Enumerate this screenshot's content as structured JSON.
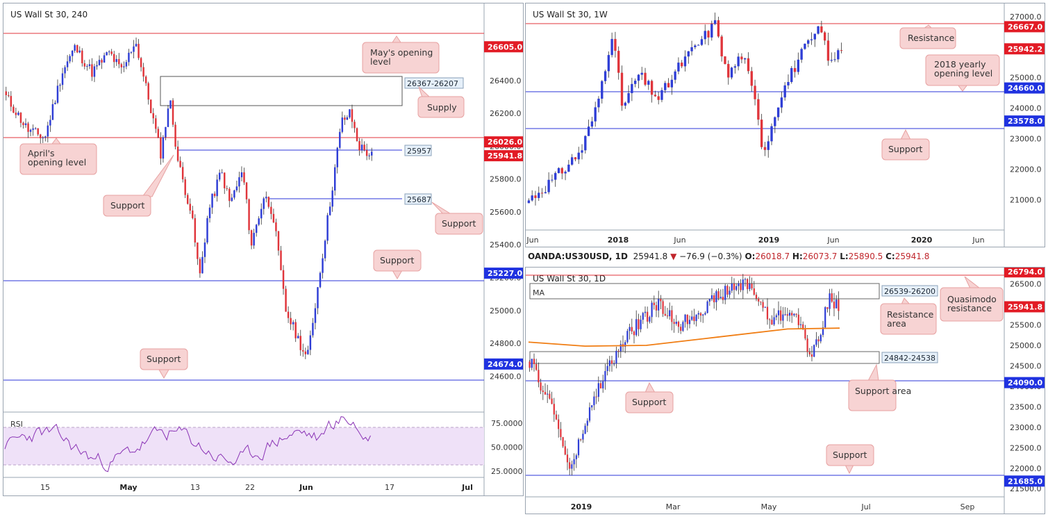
{
  "colors": {
    "up": "#2f3ed6",
    "down": "#e0353b",
    "res": "#e0353b",
    "sup": "#2b35d8",
    "ma": "#f07d13",
    "rsi": "#8a33b5",
    "rsiBand": "#efe1f8",
    "callout": "#f7d3d3",
    "calloutBorder": "#e7a1a1"
  },
  "panels": {
    "h4": {
      "title": "US Wall St 30, 240",
      "yticks": [
        "26400.0",
        "26200.0",
        "26000.0",
        "25800.0",
        "25600.0",
        "25400.0",
        "25200.0",
        "25000.0",
        "24800.0",
        "24600.0"
      ],
      "xticks": [
        "15",
        "May",
        "13",
        "22",
        "Jun",
        "17",
        "Jul"
      ],
      "bold_xticks": [
        "May",
        "Jun",
        "Jul"
      ],
      "price_tags": [
        {
          "id": "t1",
          "text": "26605.0",
          "kind": "res"
        },
        {
          "id": "t2",
          "text": "26026.0",
          "kind": "res"
        },
        {
          "id": "t3",
          "text": "25941.8",
          "kind": "res"
        },
        {
          "id": "t4",
          "text": "25227.0",
          "kind": "sup"
        },
        {
          "id": "t5",
          "text": "24674.0",
          "kind": "sup"
        }
      ],
      "box_labels": [
        "26367-26207",
        "25957",
        "25687"
      ],
      "callouts": [
        "May's opening level",
        "Supply",
        "April's opening level",
        "Support",
        "Support",
        "Support",
        "Support"
      ],
      "rsi": {
        "label": "RSI",
        "ticks": [
          "75.0000",
          "50.0000",
          "25.0000"
        ]
      }
    },
    "w1": {
      "title": "US Wall St 30, 1W",
      "yticks": [
        "27000.0",
        "26000.0",
        "25000.0",
        "24000.0",
        "23000.0",
        "22000.0",
        "21000.0"
      ],
      "xticks": [
        "Jun",
        "2018",
        "Jun",
        "2019",
        "Jun",
        "2020",
        "Jun"
      ],
      "bold_xticks": [
        "2018",
        "2019",
        "2020"
      ],
      "price_tags": [
        {
          "id": "t1",
          "text": "26667.0",
          "kind": "res"
        },
        {
          "id": "t2",
          "text": "25942.2",
          "kind": "res"
        },
        {
          "id": "t3",
          "text": "24660.0",
          "kind": "sup"
        },
        {
          "id": "t4",
          "text": "23578.0",
          "kind": "sup"
        }
      ],
      "callouts": [
        "Resistance",
        "2018 yearly opening level",
        "Support"
      ]
    },
    "d1": {
      "title": "US Wall St 30, 1D",
      "ma_label": "MA",
      "yticks": [
        "26500.0",
        "26000.0",
        "25500.0",
        "25000.0",
        "24500.0",
        "24000.0",
        "23500.0",
        "23000.0",
        "22500.0",
        "22000.0",
        "21500.0"
      ],
      "xticks": [
        "2019",
        "Mar",
        "May",
        "Jul",
        "Sep"
      ],
      "bold_xticks": [
        "2019"
      ],
      "price_tags": [
        {
          "id": "t1",
          "text": "26794.0",
          "kind": "res"
        },
        {
          "id": "t2",
          "text": "25941.8",
          "kind": "res"
        },
        {
          "id": "t3",
          "text": "24090.0",
          "kind": "sup"
        },
        {
          "id": "t4",
          "text": "21685.0",
          "kind": "sup"
        }
      ],
      "box_labels": [
        "26539-26200",
        "24842-24538"
      ],
      "callouts": [
        "Quasimodo resistance",
        "Resistance area",
        "Support area",
        "Support",
        "Support"
      ]
    }
  },
  "ohlc_bar": {
    "symbol": "OANDA:US30USD, 1D",
    "last": "25941.8",
    "arrow": "▼",
    "change": "−76.9 (−0.3%)",
    "o_label": "O:",
    "o": "26018.7",
    "h_label": "H:",
    "h": "26073.7",
    "l_label": "L:",
    "l": "25890.5",
    "c_label": "C:",
    "c": "25941.8"
  },
  "chart_data": [
    {
      "type": "candlestick",
      "title": "US Wall St 30, 240",
      "ylim": [
        24500,
        26750
      ],
      "levels": [
        {
          "value": 26605,
          "kind": "resistance",
          "label": "May's opening level"
        },
        {
          "value": 26026,
          "kind": "resistance",
          "label": "April's opening level"
        },
        {
          "value": 25957,
          "kind": "support"
        },
        {
          "value": 25687,
          "kind": "support"
        },
        {
          "value": 25227,
          "kind": "support"
        },
        {
          "value": 24674,
          "kind": "support"
        }
      ],
      "zones": [
        {
          "from": 26207,
          "to": 26367,
          "label": "Supply"
        }
      ],
      "path": [
        [
          0,
          26300
        ],
        [
          0.05,
          26100
        ],
        [
          0.09,
          26050
        ],
        [
          0.13,
          26450
        ],
        [
          0.16,
          26600
        ],
        [
          0.2,
          26450
        ],
        [
          0.24,
          26570
        ],
        [
          0.27,
          26450
        ],
        [
          0.3,
          26650
        ],
        [
          0.33,
          26300
        ],
        [
          0.36,
          25950
        ],
        [
          0.38,
          26300
        ],
        [
          0.4,
          25900
        ],
        [
          0.43,
          25600
        ],
        [
          0.45,
          25200
        ],
        [
          0.47,
          25600
        ],
        [
          0.5,
          25850
        ],
        [
          0.52,
          25650
        ],
        [
          0.55,
          25850
        ],
        [
          0.57,
          25400
        ],
        [
          0.6,
          25700
        ],
        [
          0.62,
          25600
        ],
        [
          0.65,
          25000
        ],
        [
          0.7,
          24700
        ],
        [
          0.75,
          25600
        ],
        [
          0.78,
          26150
        ],
        [
          0.8,
          26200
        ],
        [
          0.82,
          26000
        ],
        [
          0.85,
          25940
        ]
      ],
      "rsi": {
        "ylim": [
          20,
          85
        ],
        "bands": [
          30,
          70
        ]
      }
    },
    {
      "type": "candlestick",
      "title": "US Wall St 30, 1W",
      "ylim": [
        20600,
        27200
      ],
      "levels": [
        {
          "value": 26667,
          "kind": "resistance",
          "label": "Resistance"
        },
        {
          "value": 24660,
          "kind": "support",
          "label": "2018 yearly opening level"
        },
        {
          "value": 23578,
          "kind": "support",
          "label": "Support"
        }
      ],
      "path": [
        [
          0,
          21000
        ],
        [
          0.05,
          21700
        ],
        [
          0.1,
          22600
        ],
        [
          0.13,
          24000
        ],
        [
          0.16,
          26500
        ],
        [
          0.18,
          24000
        ],
        [
          0.21,
          25100
        ],
        [
          0.25,
          24300
        ],
        [
          0.29,
          25400
        ],
        [
          0.33,
          26200
        ],
        [
          0.36,
          26800
        ],
        [
          0.38,
          25000
        ],
        [
          0.41,
          25800
        ],
        [
          0.44,
          23800
        ],
        [
          0.45,
          22500
        ],
        [
          0.48,
          24300
        ],
        [
          0.52,
          25700
        ],
        [
          0.56,
          26600
        ],
        [
          0.58,
          25400
        ],
        [
          0.6,
          26000
        ]
      ]
    },
    {
      "type": "candlestick",
      "title": "US Wall St 30, 1D",
      "ylim": [
        21300,
        26900
      ],
      "levels": [
        {
          "value": 26794,
          "kind": "resistance",
          "label": "Quasimodo resistance"
        },
        {
          "value": 24090,
          "kind": "support",
          "label": "Support"
        },
        {
          "value": 21685,
          "kind": "support",
          "label": "Support"
        }
      ],
      "zones": [
        {
          "from": 26200,
          "to": 26539,
          "label": "Resistance area"
        },
        {
          "from": 24538,
          "to": 24842,
          "label": "Support area"
        }
      ],
      "path": [
        [
          0,
          24600
        ],
        [
          0.05,
          23500
        ],
        [
          0.09,
          21900
        ],
        [
          0.12,
          23000
        ],
        [
          0.16,
          24200
        ],
        [
          0.22,
          25300
        ],
        [
          0.28,
          26000
        ],
        [
          0.33,
          25500
        ],
        [
          0.38,
          25900
        ],
        [
          0.43,
          26300
        ],
        [
          0.48,
          26550
        ],
        [
          0.53,
          25600
        ],
        [
          0.58,
          25900
        ],
        [
          0.62,
          24700
        ],
        [
          0.66,
          26100
        ],
        [
          0.68,
          25940
        ]
      ],
      "moving_average": [
        [
          0,
          25080
        ],
        [
          0.12,
          24980
        ],
        [
          0.25,
          25000
        ],
        [
          0.4,
          25200
        ],
        [
          0.55,
          25400
        ],
        [
          0.66,
          25420
        ]
      ]
    }
  ]
}
